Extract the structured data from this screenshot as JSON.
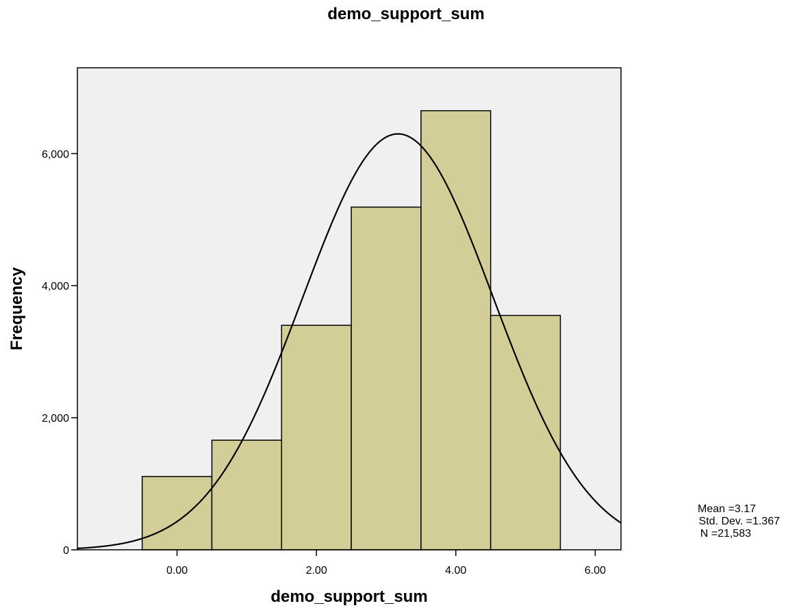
{
  "chart_data": {
    "type": "bar",
    "title": "demo_support_sum",
    "xlabel": "demo_support_sum",
    "ylabel": "Frequency",
    "categories": [
      "0",
      "1",
      "2",
      "3",
      "4",
      "5"
    ],
    "bins": [
      {
        "x0": -0.5,
        "x1": 0.5,
        "value": 1110
      },
      {
        "x0": 0.5,
        "x1": 1.5,
        "value": 1660
      },
      {
        "x0": 1.5,
        "x1": 2.5,
        "value": 3400
      },
      {
        "x0": 2.5,
        "x1": 3.5,
        "value": 5190
      },
      {
        "x0": 3.5,
        "x1": 4.5,
        "value": 6650
      },
      {
        "x0": 4.5,
        "x1": 5.5,
        "value": 3550
      }
    ],
    "xlim": [
      -1.43,
      6.37
    ],
    "ylim": [
      0,
      7300
    ],
    "x_ticks": [
      {
        "value": 0,
        "label": "0.00"
      },
      {
        "value": 2,
        "label": "2.00"
      },
      {
        "value": 4,
        "label": "4.00"
      },
      {
        "value": 6,
        "label": "6.00"
      }
    ],
    "y_ticks": [
      {
        "value": 0,
        "label": "0"
      },
      {
        "value": 2000,
        "label": "2,000"
      },
      {
        "value": 4000,
        "label": "4,000"
      },
      {
        "value": 6000,
        "label": "6,000"
      }
    ],
    "normal_curve": {
      "mean": 3.17,
      "sd": 1.367,
      "n": 21583,
      "bin_width": 1
    },
    "stats_labels": [
      "Mean =3.17",
      "Std. Dev. =1.367",
      "N =21,583"
    ],
    "grid": false,
    "colors": {
      "plot_background": "#f0f0f0",
      "bar_fill": "#d3ce98",
      "bar_stroke": "#000000",
      "curve": "#000000"
    }
  }
}
